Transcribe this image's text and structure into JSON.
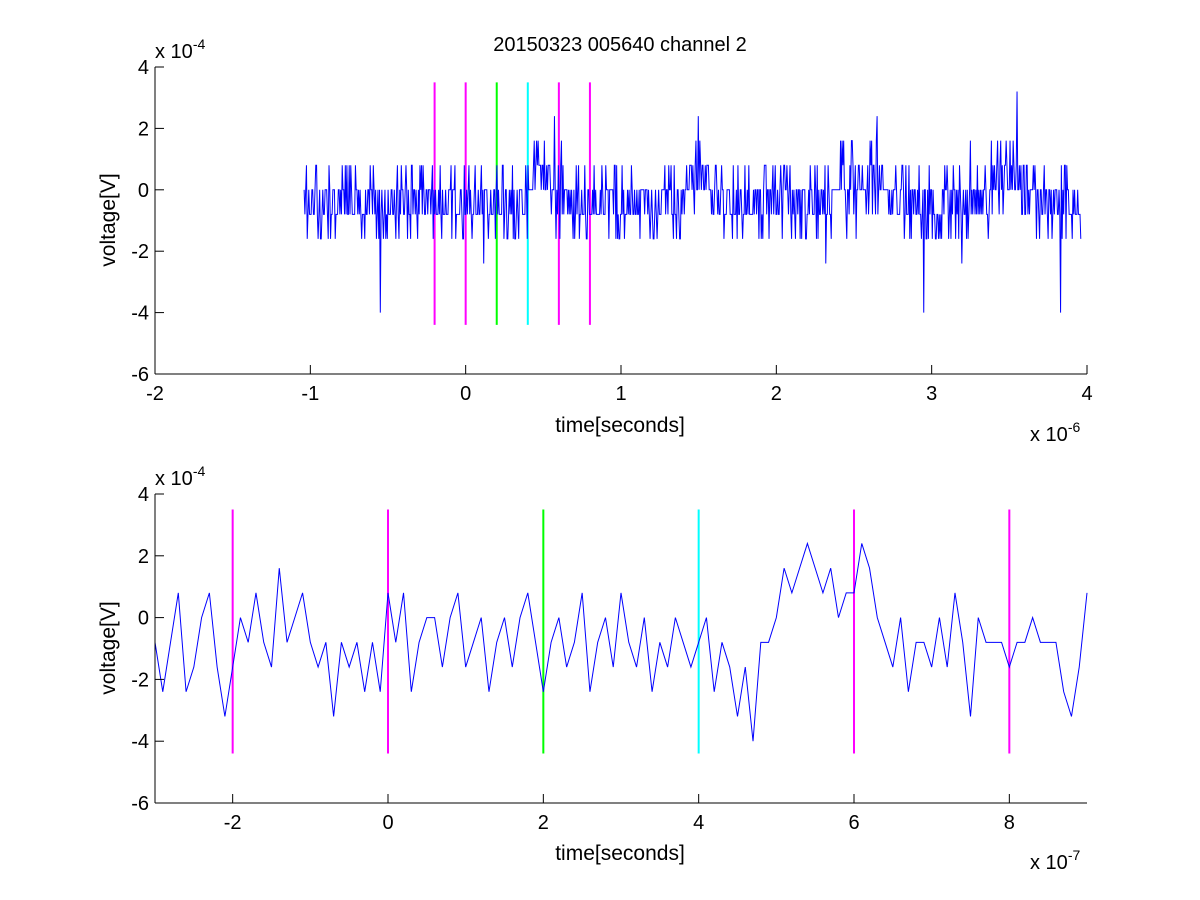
{
  "figure": {
    "title": "20150323 005640 channel 2"
  },
  "chart_data": [
    {
      "type": "line",
      "title": "20150323 005640 channel 2",
      "xlabel": "time[seconds]",
      "ylabel": "voltage[V]",
      "x_multiplier": {
        "base": "x 10",
        "exp": "-6"
      },
      "y_multiplier": {
        "base": "x 10",
        "exp": "-4"
      },
      "xlim": [
        -2,
        4
      ],
      "ylim": [
        -6,
        4
      ],
      "x_ticks": [
        -2,
        -1,
        0,
        1,
        2,
        3,
        4
      ],
      "y_ticks": [
        -6,
        -4,
        -2,
        0,
        2,
        4
      ],
      "grid": false,
      "series": [
        {
          "color": "#0000ff",
          "x_range": [
            -1.04,
            3.96
          ],
          "baseline": -0.45,
          "noise_amplitude": 1.0,
          "quantization_step": 0.8,
          "bumps": [
            {
              "x": 0.5,
              "width": 0.12,
              "height": 1.0
            },
            {
              "x": 1.5,
              "width": 0.12,
              "height": 0.9
            },
            {
              "x": 2.6,
              "width": 0.16,
              "height": 0.8
            },
            {
              "x": 3.5,
              "width": 0.12,
              "height": 0.9
            }
          ],
          "spikes": [
            {
              "x": 0.57,
              "y": 2.4
            },
            {
              "x": 1.5,
              "y": 2.4
            },
            {
              "x": 2.65,
              "y": 2.4
            },
            {
              "x": 3.55,
              "y": 3.2
            },
            {
              "x": -0.55,
              "y": -4.0
            },
            {
              "x": 2.95,
              "y": -4.0
            },
            {
              "x": 3.83,
              "y": -4.0
            }
          ]
        }
      ],
      "markers": [
        {
          "x": -0.2,
          "color": "#ff00ff",
          "y_range": [
            -4.4,
            3.5
          ]
        },
        {
          "x": 0.0,
          "color": "#ff00ff",
          "y_range": [
            -4.4,
            3.5
          ]
        },
        {
          "x": 0.2,
          "color": "#00ff00",
          "y_range": [
            -4.4,
            3.5
          ]
        },
        {
          "x": 0.4,
          "color": "#00ffff",
          "y_range": [
            -4.4,
            3.5
          ]
        },
        {
          "x": 0.6,
          "color": "#ff00ff",
          "y_range": [
            -4.4,
            3.5
          ]
        },
        {
          "x": 0.8,
          "color": "#ff00ff",
          "y_range": [
            -4.4,
            3.5
          ]
        }
      ]
    },
    {
      "type": "line",
      "title": "",
      "xlabel": "time[seconds]",
      "ylabel": "voltage[V]",
      "x_multiplier": {
        "base": "x 10",
        "exp": "-7"
      },
      "y_multiplier": {
        "base": "x 10",
        "exp": "-4"
      },
      "xlim": [
        -3,
        9
      ],
      "ylim": [
        -6,
        4
      ],
      "x_ticks": [
        -2,
        0,
        2,
        4,
        6,
        8
      ],
      "y_ticks": [
        -6,
        -4,
        -2,
        0,
        2,
        4
      ],
      "grid": false,
      "series": [
        {
          "color": "#0000ff",
          "x": [
            -3.0,
            -2.9,
            -2.8,
            -2.7,
            -2.6,
            -2.5,
            -2.4,
            -2.3,
            -2.2,
            -2.1,
            -2.0,
            -1.9,
            -1.8,
            -1.7,
            -1.6,
            -1.5,
            -1.4,
            -1.3,
            -1.2,
            -1.1,
            -1.0,
            -0.9,
            -0.8,
            -0.7,
            -0.6,
            -0.5,
            -0.4,
            -0.3,
            -0.2,
            -0.1,
            0.0,
            0.1,
            0.2,
            0.3,
            0.4,
            0.5,
            0.6,
            0.7,
            0.8,
            0.9,
            1.0,
            1.1,
            1.2,
            1.3,
            1.4,
            1.5,
            1.6,
            1.7,
            1.8,
            1.9,
            2.0,
            2.1,
            2.2,
            2.3,
            2.4,
            2.5,
            2.6,
            2.7,
            2.8,
            2.9,
            3.0,
            3.1,
            3.2,
            3.3,
            3.4,
            3.5,
            3.6,
            3.7,
            3.8,
            3.9,
            4.0,
            4.1,
            4.2,
            4.3,
            4.4,
            4.5,
            4.6,
            4.7,
            4.8,
            4.9,
            5.0,
            5.1,
            5.2,
            5.3,
            5.4,
            5.5,
            5.6,
            5.7,
            5.8,
            5.9,
            6.0,
            6.1,
            6.2,
            6.3,
            6.4,
            6.5,
            6.6,
            6.7,
            6.8,
            6.9,
            7.0,
            7.1,
            7.2,
            7.3,
            7.4,
            7.5,
            7.6,
            7.7,
            7.8,
            7.9,
            8.0,
            8.1,
            8.2,
            8.3,
            8.4,
            8.5,
            8.6,
            8.7,
            8.8,
            8.9,
            9.0
          ],
          "y": [
            -0.8,
            -2.4,
            -0.8,
            0.8,
            -2.4,
            -1.6,
            0.0,
            0.8,
            -1.6,
            -3.2,
            -1.6,
            0.0,
            -0.8,
            0.8,
            -0.8,
            -1.6,
            1.6,
            -0.8,
            0.0,
            0.8,
            -0.8,
            -1.6,
            -0.8,
            -3.2,
            -0.8,
            -1.6,
            -0.8,
            -2.4,
            -0.8,
            -2.4,
            0.8,
            -0.8,
            0.8,
            -2.4,
            -0.8,
            0.0,
            0.0,
            -1.6,
            0.0,
            0.8,
            -1.6,
            -0.8,
            0.0,
            -2.4,
            -0.8,
            0.0,
            -1.6,
            0.0,
            0.8,
            -0.8,
            -2.4,
            -0.8,
            0.0,
            -1.6,
            -0.8,
            0.8,
            -2.4,
            -0.8,
            0.0,
            -1.6,
            0.8,
            -0.8,
            -1.6,
            0.0,
            -2.4,
            -0.8,
            -1.6,
            0.0,
            -0.8,
            -1.6,
            -0.8,
            0.0,
            -2.4,
            -0.8,
            -1.6,
            -3.2,
            -1.6,
            -4.0,
            -0.8,
            -0.8,
            0.0,
            1.6,
            0.8,
            1.6,
            2.4,
            1.6,
            0.8,
            1.6,
            0.0,
            0.8,
            0.8,
            2.4,
            1.6,
            0.0,
            -0.8,
            -1.6,
            0.0,
            -2.4,
            -0.8,
            -0.8,
            -1.6,
            0.0,
            -1.6,
            0.8,
            -0.8,
            -3.2,
            0.0,
            -0.8,
            -0.8,
            -0.8,
            -1.6,
            -0.8,
            -0.8,
            0.0,
            -0.8,
            -0.8,
            -0.8,
            -2.4,
            -3.2,
            -1.6,
            0.8
          ]
        }
      ],
      "markers": [
        {
          "x": -2,
          "color": "#ff00ff",
          "y_range": [
            -4.4,
            3.5
          ]
        },
        {
          "x": 0,
          "color": "#ff00ff",
          "y_range": [
            -4.4,
            3.5
          ]
        },
        {
          "x": 2,
          "color": "#00ff00",
          "y_range": [
            -4.4,
            3.5
          ]
        },
        {
          "x": 4,
          "color": "#00ffff",
          "y_range": [
            -4.4,
            3.5
          ]
        },
        {
          "x": 6,
          "color": "#ff00ff",
          "y_range": [
            -4.4,
            3.5
          ]
        },
        {
          "x": 8,
          "color": "#ff00ff",
          "y_range": [
            -4.4,
            3.5
          ]
        }
      ]
    }
  ]
}
